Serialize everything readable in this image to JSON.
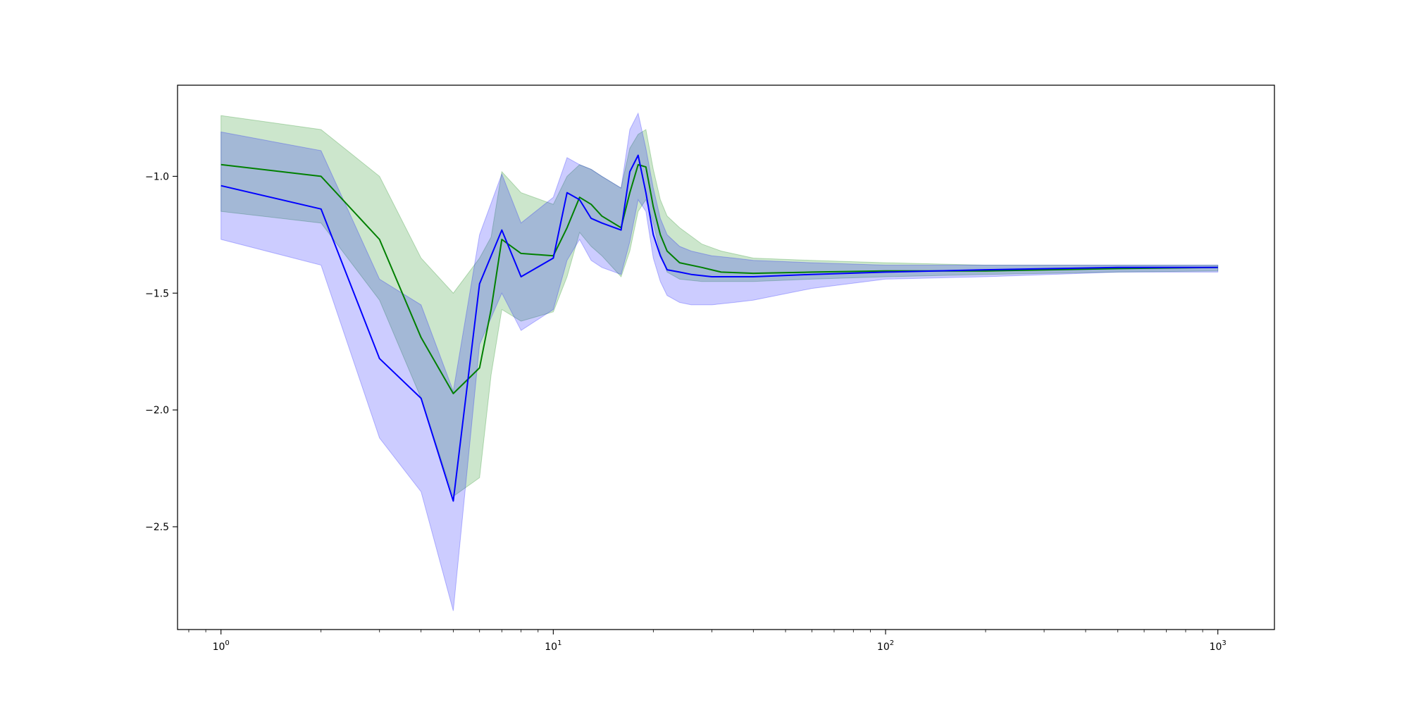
{
  "chart_data": {
    "type": "line",
    "title": "",
    "xlabel": "",
    "ylabel": "",
    "xscale": "log",
    "xlim": [
      0.74,
      1480
    ],
    "ylim": [
      -2.94,
      -0.61
    ],
    "grid": false,
    "legend": "none",
    "x_ticks": [
      {
        "value": 1,
        "base": "10",
        "exp": "0"
      },
      {
        "value": 10,
        "base": "10",
        "exp": "1"
      },
      {
        "value": 100,
        "base": "10",
        "exp": "2"
      },
      {
        "value": 1000,
        "base": "10",
        "exp": "3"
      }
    ],
    "y_ticks": [
      {
        "value": -1.0,
        "label": "−1.0"
      },
      {
        "value": -1.5,
        "label": "−1.5"
      },
      {
        "value": -2.0,
        "label": "−2.0"
      },
      {
        "value": -2.5,
        "label": "−2.5"
      }
    ],
    "series": [
      {
        "color": "#008000",
        "band_color": "#008000",
        "band_opacity": 0.2,
        "x": [
          1,
          2,
          3,
          4,
          5,
          6,
          6.5,
          7,
          8,
          10,
          11,
          12,
          13,
          14,
          16,
          17,
          18,
          19,
          20,
          21,
          22,
          24,
          28,
          32,
          40,
          60,
          100,
          200,
          500,
          1000
        ],
        "y": [
          -0.95,
          -1.0,
          -1.27,
          -1.69,
          -1.93,
          -1.82,
          -1.57,
          -1.27,
          -1.33,
          -1.34,
          -1.22,
          -1.09,
          -1.12,
          -1.17,
          -1.22,
          -1.07,
          -0.95,
          -0.96,
          -1.13,
          -1.25,
          -1.32,
          -1.37,
          -1.39,
          -1.41,
          -1.415,
          -1.41,
          -1.405,
          -1.405,
          -1.395,
          -1.39
        ],
        "lower": [
          -1.15,
          -1.2,
          -1.53,
          -1.95,
          -2.37,
          -2.29,
          -1.85,
          -1.57,
          -1.62,
          -1.58,
          -1.43,
          -1.24,
          -1.3,
          -1.34,
          -1.43,
          -1.32,
          -1.15,
          -1.1,
          -1.2,
          -1.33,
          -1.41,
          -1.44,
          -1.45,
          -1.45,
          -1.45,
          -1.44,
          -1.43,
          -1.42,
          -1.41,
          -1.405
        ],
        "upper": [
          -0.74,
          -0.8,
          -1.0,
          -1.35,
          -1.5,
          -1.35,
          -1.26,
          -0.98,
          -1.07,
          -1.12,
          -1.0,
          -0.95,
          -0.97,
          -1.0,
          -1.05,
          -0.88,
          -0.82,
          -0.8,
          -0.97,
          -1.1,
          -1.17,
          -1.22,
          -1.29,
          -1.32,
          -1.35,
          -1.36,
          -1.37,
          -1.38,
          -1.38,
          -1.38
        ]
      },
      {
        "color": "#0000ff",
        "band_color": "#0000ff",
        "band_opacity": 0.2,
        "x": [
          1,
          2,
          3,
          4,
          5,
          6,
          7,
          8,
          10,
          11,
          12,
          13,
          14,
          16,
          17,
          18,
          19,
          20,
          21,
          22,
          24,
          26,
          30,
          35,
          40,
          60,
          100,
          200,
          500,
          1000
        ],
        "y": [
          -1.04,
          -1.14,
          -1.78,
          -1.95,
          -2.39,
          -1.46,
          -1.23,
          -1.43,
          -1.35,
          -1.07,
          -1.1,
          -1.18,
          -1.2,
          -1.23,
          -0.98,
          -0.91,
          -1.07,
          -1.25,
          -1.34,
          -1.4,
          -1.41,
          -1.42,
          -1.43,
          -1.43,
          -1.43,
          -1.42,
          -1.41,
          -1.4,
          -1.39,
          -1.39
        ],
        "lower": [
          -1.27,
          -1.38,
          -2.12,
          -2.35,
          -2.86,
          -1.72,
          -1.5,
          -1.66,
          -1.57,
          -1.36,
          -1.27,
          -1.36,
          -1.39,
          -1.42,
          -1.28,
          -1.1,
          -1.15,
          -1.35,
          -1.45,
          -1.51,
          -1.54,
          -1.55,
          -1.55,
          -1.54,
          -1.53,
          -1.48,
          -1.44,
          -1.43,
          -1.41,
          -1.41
        ],
        "upper": [
          -0.81,
          -0.89,
          -1.44,
          -1.55,
          -1.92,
          -1.25,
          -0.99,
          -1.2,
          -1.09,
          -0.92,
          -0.95,
          -0.97,
          -1.0,
          -1.05,
          -0.8,
          -0.73,
          -0.88,
          -1.05,
          -1.18,
          -1.25,
          -1.3,
          -1.32,
          -1.34,
          -1.35,
          -1.36,
          -1.37,
          -1.38,
          -1.38,
          -1.38,
          -1.38
        ]
      }
    ]
  }
}
